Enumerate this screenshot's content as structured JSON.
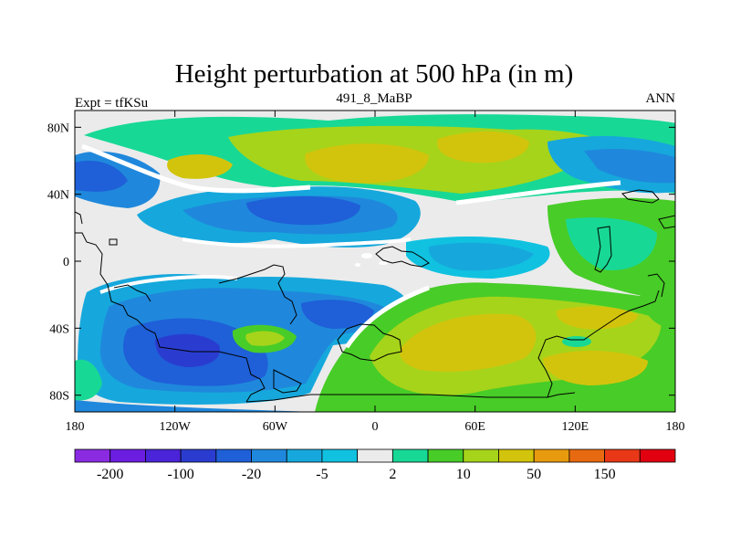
{
  "chart_data": {
    "type": "heatmap",
    "title": "Height perturbation at 500 hPa (in m)",
    "subtitle_left": "Expt = tfKSu",
    "subtitle_center": "491_8_MaBP",
    "subtitle_right": "ANN",
    "x_ticks": [
      "180",
      "120W",
      "60W",
      "0",
      "60E",
      "120E",
      "180"
    ],
    "x_tick_values": [
      -180,
      -120,
      -60,
      0,
      60,
      120,
      180
    ],
    "y_ticks": [
      "80N",
      "40N",
      "0",
      "40S",
      "80S"
    ],
    "y_tick_values": [
      80,
      40,
      0,
      -40,
      -80
    ],
    "xlim": [
      -180,
      180
    ],
    "ylim": [
      -90,
      90
    ],
    "colorbar": {
      "colors": [
        "#8a2be2",
        "#6c1ee0",
        "#4a24d8",
        "#2a3cd0",
        "#1f5fd8",
        "#1f88dc",
        "#16a8dc",
        "#10c2e0",
        "#ebebeb",
        "#18d896",
        "#48cc28",
        "#a6d41a",
        "#d2c40c",
        "#e89a0e",
        "#e86a10",
        "#e83818",
        "#e00010"
      ],
      "labels": [
        "-200",
        "-100",
        "-20",
        "-5",
        "2",
        "10",
        "50",
        "150"
      ],
      "label_after_index": [
        0,
        2,
        4,
        6,
        8,
        10,
        12,
        14
      ]
    }
  }
}
